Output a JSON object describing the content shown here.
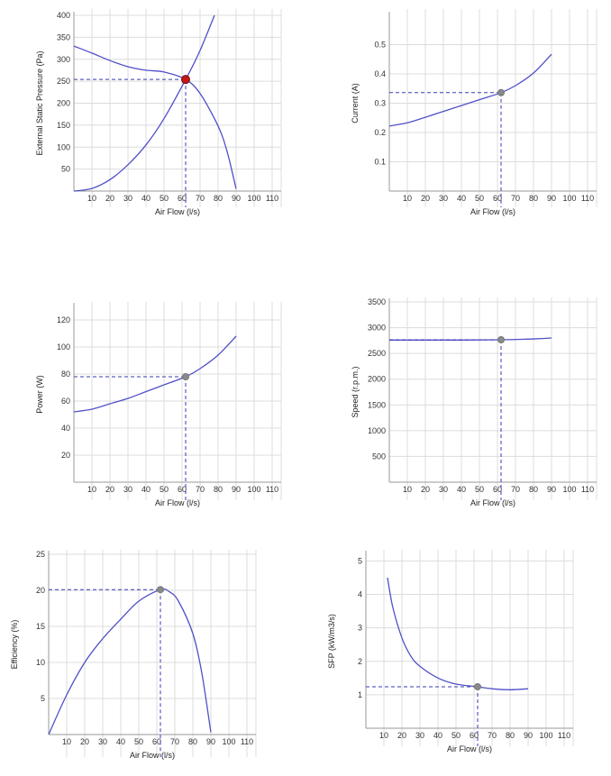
{
  "chart_data": [
    {
      "id": "pressure",
      "type": "line",
      "xlabel": "Air Flow (l/s)",
      "ylabel": "External Static Pressure (Pa)",
      "xlim": [
        0,
        115
      ],
      "ylim": [
        0,
        400
      ],
      "xticks": [
        10,
        20,
        30,
        40,
        50,
        60,
        70,
        80,
        90,
        100,
        110
      ],
      "xtick_labels": [
        "10",
        "20",
        "30",
        "40",
        "50",
        "60",
        "70",
        "80",
        "90",
        "100",
        "110"
      ],
      "yticks": [
        50,
        100,
        150,
        200,
        250,
        300,
        350,
        400
      ],
      "ytick_labels": [
        "50",
        "100",
        "150",
        "200",
        "250",
        "300",
        "350",
        "400"
      ],
      "grid": true,
      "series": [
        {
          "x": [
            0,
            10,
            20,
            30,
            40,
            50,
            62,
            70,
            80,
            85,
            90
          ],
          "y": [
            330,
            314,
            297,
            283,
            275,
            271,
            254,
            222,
            148,
            90,
            5
          ]
        },
        {
          "x": [
            0,
            10,
            20,
            30,
            40,
            50,
            62,
            70,
            78
          ],
          "y": [
            0,
            6,
            26,
            60,
            105,
            165,
            254,
            320,
            400
          ]
        }
      ],
      "operating_point": {
        "x": 62,
        "y": 254,
        "color": "#c01818"
      },
      "colors": {
        "curve": "#5050c8",
        "guide": "#3a3ab8"
      }
    },
    {
      "id": "current",
      "type": "line",
      "xlabel": "Air Flow (l/s)",
      "ylabel": "Current (A)",
      "xlim": [
        0,
        115
      ],
      "ylim": [
        0,
        0.6
      ],
      "xticks": [
        10,
        20,
        30,
        40,
        50,
        60,
        70,
        80,
        90,
        100,
        110
      ],
      "xtick_labels": [
        "10",
        "20",
        "30",
        "40",
        "50",
        "60",
        "70",
        "80",
        "90",
        "100",
        "110"
      ],
      "yticks": [
        0.1,
        0.2,
        0.3,
        0.4,
        0.5
      ],
      "ytick_labels": [
        "0.1",
        "0.2",
        "0.3",
        "0.4",
        "0.5"
      ],
      "grid": true,
      "series": [
        {
          "x": [
            0,
            10,
            20,
            30,
            40,
            50,
            62,
            70,
            80,
            90
          ],
          "y": [
            0.222,
            0.233,
            0.252,
            0.272,
            0.292,
            0.312,
            0.336,
            0.36,
            0.403,
            0.467
          ]
        }
      ],
      "operating_point": {
        "x": 62,
        "y": 0.336,
        "color": "#8a8a8a"
      },
      "colors": {
        "curve": "#5050c8",
        "guide": "#3a3ab8"
      }
    },
    {
      "id": "power",
      "type": "line",
      "xlabel": "Air Flow (l/s)",
      "ylabel": "Power (W)",
      "xlim": [
        0,
        115
      ],
      "ylim": [
        0,
        130
      ],
      "xticks": [
        10,
        20,
        30,
        40,
        50,
        60,
        70,
        80,
        90,
        100,
        110
      ],
      "xtick_labels": [
        "10",
        "20",
        "30",
        "40",
        "50",
        "60",
        "70",
        "80",
        "90",
        "100",
        "110"
      ],
      "yticks": [
        20,
        40,
        60,
        80,
        100,
        120
      ],
      "ytick_labels": [
        "20",
        "40",
        "60",
        "80",
        "100",
        "120"
      ],
      "grid": true,
      "series": [
        {
          "x": [
            0,
            10,
            20,
            30,
            40,
            50,
            62,
            70,
            80,
            90
          ],
          "y": [
            52,
            54,
            58,
            62,
            67,
            72,
            78,
            84,
            94,
            108
          ]
        }
      ],
      "operating_point": {
        "x": 62,
        "y": 78,
        "color": "#8a8a8a"
      },
      "colors": {
        "curve": "#5050c8",
        "guide": "#3a3ab8"
      }
    },
    {
      "id": "speed",
      "type": "line",
      "xlabel": "Air Flow (l/s)",
      "ylabel": "Speed (r.p.m.)",
      "xlim": [
        0,
        115
      ],
      "ylim": [
        0,
        3500
      ],
      "xticks": [
        10,
        20,
        30,
        40,
        50,
        60,
        70,
        80,
        90,
        100,
        110
      ],
      "xtick_labels": [
        "10",
        "20",
        "30",
        "40",
        "50",
        "60",
        "70",
        "80",
        "90",
        "100",
        "110"
      ],
      "yticks": [
        500,
        1000,
        1500,
        2000,
        2500,
        3000,
        3500
      ],
      "ytick_labels": [
        "500",
        "1000",
        "1500",
        "2000",
        "2500",
        "3000",
        "3500"
      ],
      "grid": true,
      "series": [
        {
          "x": [
            0,
            20,
            40,
            62,
            75,
            85,
            90
          ],
          "y": [
            2760,
            2760,
            2760,
            2765,
            2775,
            2790,
            2800
          ]
        }
      ],
      "operating_point": {
        "x": 62,
        "y": 2765,
        "color": "#8a8a8a"
      },
      "colors": {
        "curve": "#5050c8",
        "guide": "#3a3ab8"
      }
    },
    {
      "id": "efficiency",
      "type": "line",
      "xlabel": "Air Flow (l/s)",
      "ylabel": "Efficiency (%)",
      "xlim": [
        0,
        115
      ],
      "ylim": [
        0,
        25
      ],
      "xticks": [
        10,
        20,
        30,
        40,
        50,
        60,
        70,
        80,
        90,
        100,
        110
      ],
      "xtick_labels": [
        "10",
        "20",
        "30",
        "40",
        "50",
        "60",
        "70",
        "80",
        "90",
        "100",
        "110"
      ],
      "yticks": [
        5,
        10,
        15,
        20,
        25
      ],
      "ytick_labels": [
        "5",
        "10",
        "15",
        "20",
        "25"
      ],
      "grid": true,
      "series": [
        {
          "x": [
            0,
            10,
            20,
            30,
            40,
            50,
            62,
            67,
            72,
            80,
            85,
            90
          ],
          "y": [
            0,
            5.5,
            10,
            13.3,
            16,
            18.5,
            20.1,
            19.8,
            18.5,
            14,
            8.5,
            0.3
          ]
        }
      ],
      "operating_point": {
        "x": 62,
        "y": 20.1,
        "color": "#8a8a8a"
      },
      "colors": {
        "curve": "#5050c8",
        "guide": "#3a3ab8"
      }
    },
    {
      "id": "sfp",
      "type": "line",
      "xlabel": "Air Flow (l/s)",
      "ylabel": "SFP (kW/m3/s)",
      "xlim": [
        0,
        115
      ],
      "ylim": [
        0,
        5.2
      ],
      "xticks": [
        10,
        20,
        30,
        40,
        50,
        60,
        70,
        80,
        90,
        100,
        110
      ],
      "xtick_labels": [
        "10",
        "20",
        "30",
        "40",
        "50",
        "60",
        "70",
        "80",
        "90",
        "100",
        "110"
      ],
      "yticks": [
        1,
        2,
        3,
        4,
        5
      ],
      "ytick_labels": [
        "1",
        "2",
        "3",
        "4",
        "5"
      ],
      "grid": true,
      "series": [
        {
          "x": [
            12,
            15,
            20,
            25,
            30,
            40,
            50,
            62,
            70,
            80,
            90
          ],
          "y": [
            4.5,
            3.6,
            2.7,
            2.15,
            1.85,
            1.5,
            1.32,
            1.24,
            1.18,
            1.15,
            1.18
          ]
        }
      ],
      "operating_point": {
        "x": 62,
        "y": 1.24,
        "color": "#8a8a8a"
      },
      "colors": {
        "curve": "#5050c8",
        "guide": "#3a3ab8"
      }
    }
  ]
}
